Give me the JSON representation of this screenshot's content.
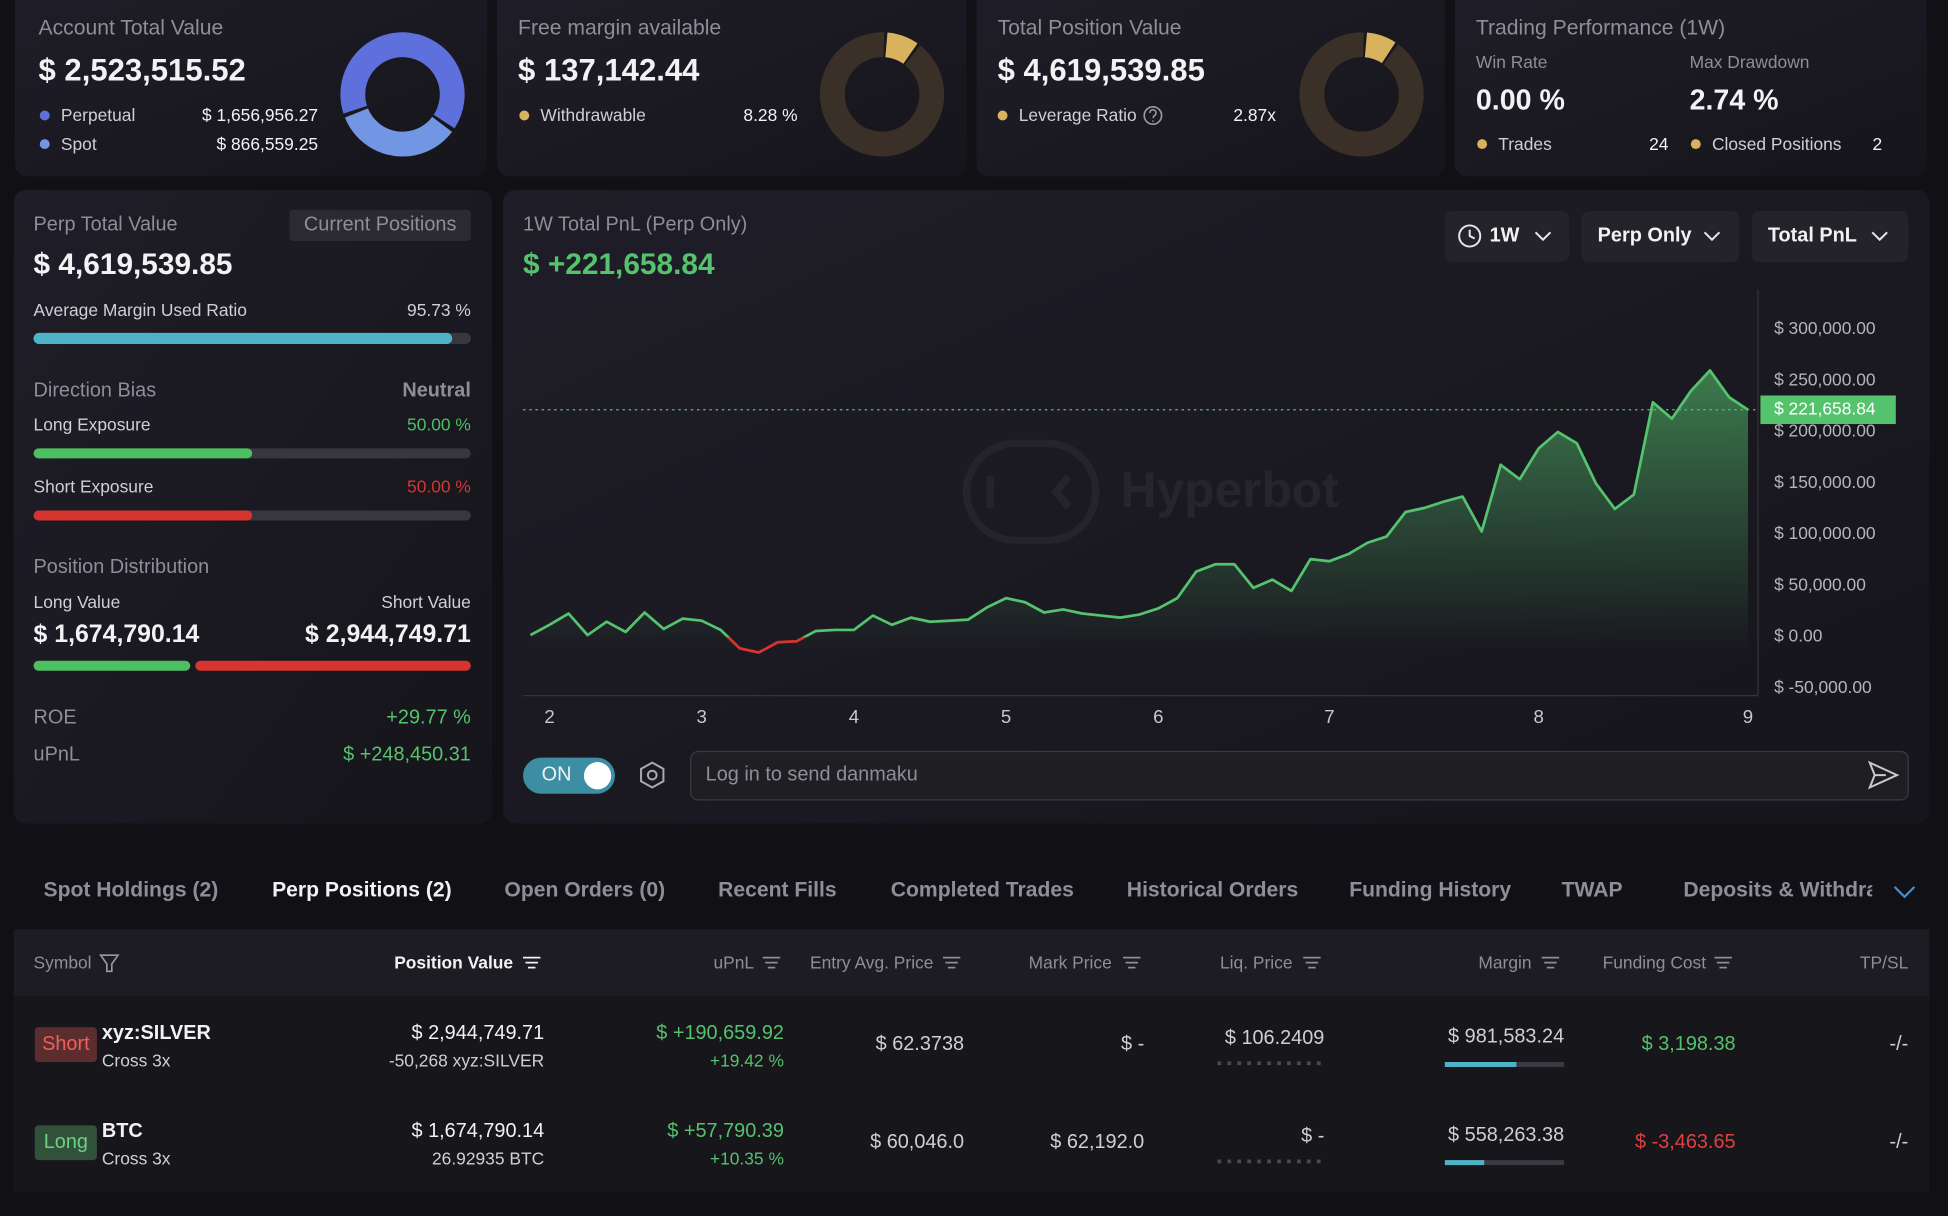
{
  "summary": {
    "account": {
      "title": "Account Total Value",
      "value": "$ 2,523,515.52",
      "items": [
        {
          "name": "Perpetual",
          "value": 1656956.27,
          "label": "$ 1,656,956.27",
          "color": "#5d70dc"
        },
        {
          "name": "Spot",
          "value": 866559.25,
          "label": "$ 866,559.25",
          "color": "#7396e4"
        }
      ]
    },
    "margin": {
      "title": "Free margin available",
      "value": "$ 137,142.44",
      "item": {
        "name": "Withdrawable",
        "value": 8.28,
        "label": "8.28 %",
        "color": "#d8b25c"
      }
    },
    "position": {
      "title": "Total Position Value",
      "value": "$ 4,619,539.85",
      "item": {
        "name": "Leverage Ratio",
        "text": "2.87x"
      }
    },
    "performance": {
      "title": "Trading Performance (1W)",
      "win_rate_label": "Win Rate",
      "win_rate": "0.00 %",
      "drawdown_label": "Max Drawdown",
      "drawdown": "2.74 %",
      "trades_label": "Trades",
      "trades": "24",
      "closed_label": "Closed Positions",
      "closed": "2"
    }
  },
  "perp": {
    "title": "Perp Total Value",
    "button": "Current Positions",
    "value": "$ 4,619,539.85",
    "margin": {
      "name": "Average Margin Used Ratio",
      "value": 95.73,
      "label": "95.73 %",
      "color": "#4fb3c8"
    },
    "bias_label": "Direction Bias",
    "bias": "Neutral",
    "long_exposure": {
      "name": "Long Exposure",
      "value": 50,
      "label": "50.00 %",
      "color": "#4cbf63"
    },
    "short_exposure": {
      "name": "Short Exposure",
      "value": 50,
      "label": "50.00 %",
      "color": "#d8342f"
    },
    "distribution": {
      "title": "Position Distribution",
      "long": {
        "name": "Long Value",
        "value": 1674790.14,
        "label": "$ 1,674,790.14"
      },
      "short": {
        "name": "Short Value",
        "value": 2944749.71,
        "label": "$ 2,944,749.71"
      }
    },
    "roe": {
      "name": "ROE",
      "text": "+29.77 %"
    },
    "upnl": {
      "name": "uPnL",
      "text": "$ +248,450.31"
    }
  },
  "chart_data": {
    "type": "line",
    "title": "1W Total PnL (Perp Only)",
    "subtitle": "$ +221,658.84",
    "color": "#55c26d",
    "negative_color": "#d8342f",
    "categories": [
      null,
      "2",
      null,
      null,
      null,
      null,
      null,
      null,
      null,
      "3",
      null,
      null,
      null,
      null,
      null,
      null,
      null,
      "4",
      null,
      null,
      null,
      null,
      null,
      null,
      null,
      "5",
      null,
      null,
      null,
      null,
      null,
      null,
      null,
      "6",
      null,
      null,
      null,
      null,
      null,
      null,
      null,
      null,
      "7",
      null,
      null,
      null,
      null,
      null,
      null,
      null,
      null,
      null,
      null,
      "8",
      null,
      null,
      null,
      null,
      null,
      null,
      null,
      null,
      null,
      null,
      "9"
    ],
    "values": [
      2000,
      12000,
      23000,
      2000,
      15000,
      5000,
      24000,
      8000,
      18000,
      16000,
      7000,
      -11000,
      -15000,
      -5000,
      -4000,
      6000,
      7000,
      7000,
      21000,
      12000,
      19000,
      15000,
      16000,
      17000,
      29000,
      38000,
      34000,
      24000,
      27000,
      23000,
      21000,
      19000,
      22000,
      28000,
      38000,
      64000,
      71000,
      71000,
      48000,
      56000,
      45000,
      76000,
      74000,
      81000,
      92000,
      98000,
      122000,
      126000,
      132000,
      137000,
      103000,
      168000,
      154000,
      184000,
      200000,
      189000,
      150000,
      125000,
      139000,
      229000,
      213000,
      240000,
      260000,
      234000,
      221658.84
    ],
    "value_labels": [
      null,
      null,
      null,
      null,
      null,
      null,
      null,
      null,
      null,
      null,
      null,
      null,
      null,
      null,
      null,
      null,
      null,
      null,
      null,
      null,
      null,
      null,
      null,
      null,
      null,
      null,
      null,
      null,
      null,
      null,
      null,
      null,
      null,
      null,
      null,
      null,
      null,
      null,
      null,
      null,
      null,
      null,
      null,
      null,
      null,
      null,
      null,
      null,
      null,
      null,
      null,
      null,
      null,
      null,
      null,
      null,
      null,
      null,
      null,
      null,
      null,
      null,
      null,
      null,
      "$ 221,658.84"
    ],
    "ylim": [
      -57000,
      339000
    ],
    "yticks": [
      {
        "value": -50000,
        "label": "$ -50,000.00"
      },
      {
        "value": 0,
        "label": "$ 0.00"
      },
      {
        "value": 50000,
        "label": "$ 50,000.00"
      },
      {
        "value": 100000,
        "label": "$ 100,000.00"
      },
      {
        "value": 150000,
        "label": "$ 150,000.00"
      },
      {
        "value": 200000,
        "label": "$ 200,000.00"
      },
      {
        "value": 250000,
        "label": "$ 250,000.00"
      },
      {
        "value": 300000,
        "label": "$ 300,000.00"
      }
    ],
    "grid": false
  },
  "chart_controls": [
    "1W",
    "Perp Only",
    "Total PnL"
  ],
  "watermark": "Hyperbot",
  "danmaku": {
    "toggle": "ON",
    "placeholder": "Log in to send danmaku"
  },
  "tabs": {
    "items": [
      "Spot Holdings (2)",
      "Perp Positions (2)",
      "Open Orders (0)",
      "Recent Fills",
      "Completed Trades",
      "Historical Orders",
      "Funding History",
      "TWAP",
      "Deposits & Withdrawals"
    ],
    "active": 1
  },
  "table": {
    "columns": [
      "Symbol",
      "Position Value",
      "uPnL",
      "Entry Avg. Price",
      "Mark Price",
      "Liq. Price",
      "Margin",
      "Funding Cost",
      "TP/SL"
    ],
    "sorted_column": 1,
    "rows": [
      {
        "side": "Short",
        "side_color": "#f0605a",
        "symbol": "xyz:SILVER",
        "mode": "Cross 3x",
        "position_value": "$ 2,944,749.71",
        "size": "-50,268 xyz:SILVER",
        "upnl": "$ +190,659.92",
        "upnl_pct": "+19.42 %",
        "upnl_color": "#55c26d",
        "entry": "$ 62.3738",
        "mark": "$ -",
        "liq": "$ 106.2409",
        "margin": "$ 981,583.24",
        "margin_ratio": 60,
        "funding": "$ 3,198.38",
        "funding_color": "#55c26d",
        "tpsl": "-/-"
      },
      {
        "side": "Long",
        "side_color": "#6fd07f",
        "symbol": "BTC",
        "mode": "Cross 3x",
        "position_value": "$ 1,674,790.14",
        "size": "26.92935 BTC",
        "upnl": "$ +57,790.39",
        "upnl_pct": "+10.35 %",
        "upnl_color": "#55c26d",
        "entry": "$ 60,046.0",
        "mark": "$ 62,192.0",
        "liq": "$ -",
        "margin": "$ 558,263.38",
        "margin_ratio": 33,
        "funding": "$ -3,463.65",
        "funding_color": "#e0403f",
        "tpsl": "-/-"
      }
    ]
  }
}
